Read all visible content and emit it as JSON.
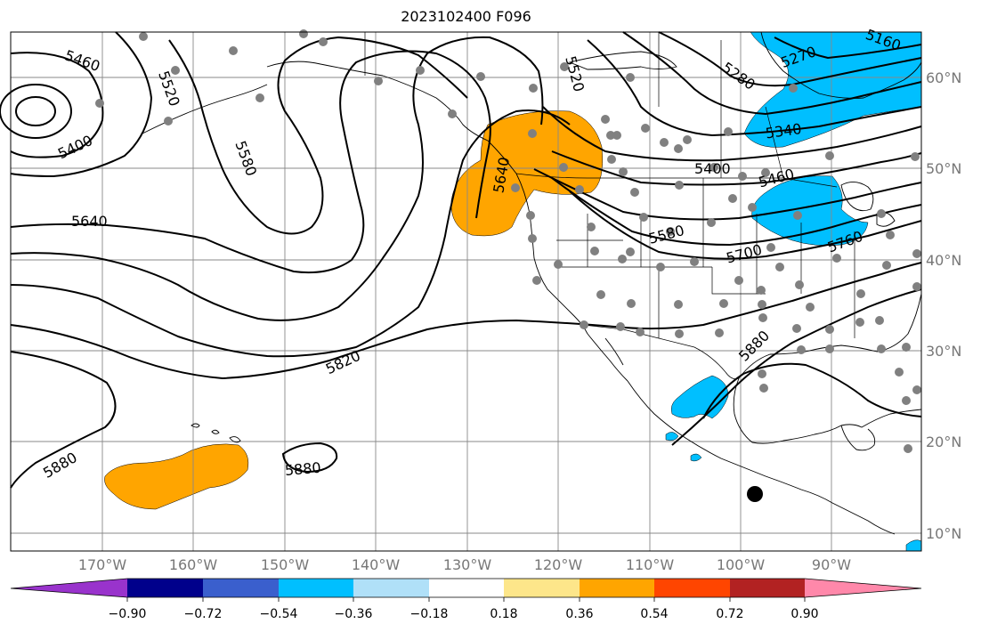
{
  "title": "2023102400 F096",
  "lon_ticks": [
    "170°W",
    "160°W",
    "150°W",
    "140°W",
    "130°W",
    "120°W",
    "110°W",
    "100°W",
    "90°W"
  ],
  "lat_ticks": [
    "60°N",
    "50°N",
    "40°N",
    "30°N",
    "20°N",
    "10°N"
  ],
  "contour_labels": [
    "5160",
    "5270",
    "5280",
    "5340",
    "5400",
    "5400",
    "5460",
    "5460",
    "5520",
    "5520",
    "5580",
    "5580",
    "5640",
    "5640",
    "5700",
    "5760",
    "5820",
    "5880",
    "5880",
    "5880"
  ],
  "colorbar": {
    "ticks": [
      "−0.90",
      "−0.72",
      "−0.54",
      "−0.36",
      "−0.18",
      "0.18",
      "0.36",
      "0.54",
      "0.72",
      "0.90"
    ],
    "colors": [
      "#9933cc",
      "#00008b",
      "#3a5fcd",
      "#00bfff",
      "#b0e0f8",
      "#ffffff",
      "#fde68a",
      "#ffa500",
      "#ff4500",
      "#b22222",
      "#ff88aa"
    ]
  },
  "colors": {
    "positive_anomaly": "#ffa500",
    "negative_anomaly": "#00bfff",
    "station_dot": "#808080"
  }
}
